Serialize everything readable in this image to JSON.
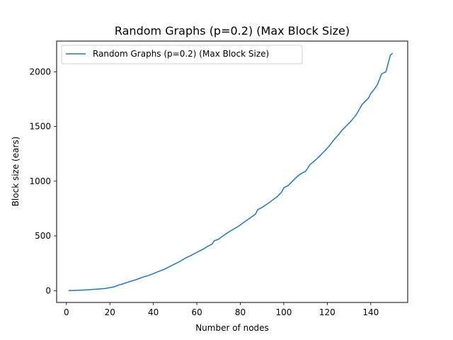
{
  "chart_data": {
    "type": "line",
    "title": "Random Graphs (p=0.2) (Max Block Size)",
    "xlabel": "Number of nodes",
    "ylabel": "Block size (ears)",
    "xlim": [
      -4.5,
      157
    ],
    "ylim": [
      -108,
      2280
    ],
    "xticks": [
      0,
      20,
      40,
      60,
      80,
      100,
      120,
      140
    ],
    "yticks": [
      0,
      500,
      1000,
      1500,
      2000
    ],
    "grid": false,
    "legend_position": "upper-left",
    "series": [
      {
        "name": "Random Graphs (p=0.2) (Max Block Size)",
        "color": "#1f77b4",
        "x": [
          1,
          5,
          10,
          15,
          18,
          20,
          22,
          24,
          26,
          28,
          30,
          32,
          35,
          38,
          40,
          42,
          45,
          48,
          50,
          52,
          55,
          57,
          60,
          63,
          65,
          67,
          68,
          70,
          72,
          75,
          78,
          80,
          82,
          85,
          87,
          88,
          90,
          93,
          95,
          97,
          99,
          100,
          102,
          104,
          106,
          108,
          110,
          112,
          115,
          117,
          119,
          120,
          122,
          124,
          125,
          127,
          129,
          131,
          133,
          134,
          136,
          138,
          139,
          140,
          142,
          143,
          145,
          147,
          149,
          150
        ],
        "y": [
          0,
          3,
          8,
          15,
          20,
          28,
          35,
          50,
          62,
          75,
          88,
          100,
          122,
          140,
          155,
          172,
          195,
          225,
          245,
          265,
          300,
          318,
          350,
          380,
          405,
          425,
          455,
          470,
          500,
          540,
          575,
          600,
          630,
          670,
          700,
          740,
          760,
          800,
          830,
          860,
          900,
          940,
          960,
          1000,
          1040,
          1070,
          1090,
          1150,
          1200,
          1240,
          1280,
          1300,
          1350,
          1400,
          1420,
          1470,
          1510,
          1550,
          1600,
          1630,
          1700,
          1740,
          1760,
          1800,
          1850,
          1880,
          1980,
          2000,
          2150,
          2170
        ]
      }
    ]
  }
}
